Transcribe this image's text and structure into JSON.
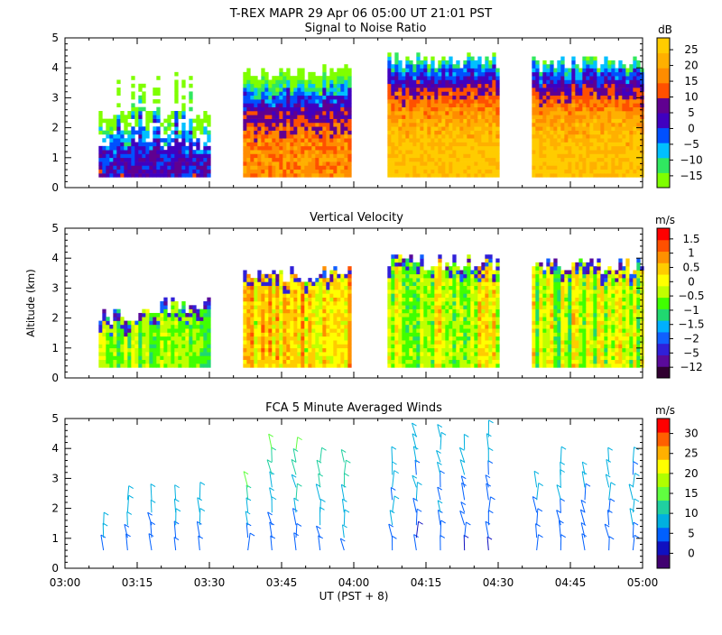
{
  "header": {
    "line1": "T-REX   MAPR 29 Apr 06   05:00 UT   21:01   PST"
  },
  "colors": {
    "snr": [
      "#7fff00",
      "#30e860",
      "#00c0ff",
      "#0050ff",
      "#4000c0",
      "#600090",
      "#ff5000",
      "#ff8c00",
      "#ffb000",
      "#ffcc00"
    ],
    "vel": [
      "#300030",
      "#5a0a9a",
      "#3020d8",
      "#1060ff",
      "#00b0ff",
      "#20d870",
      "#40ff00",
      "#c0ff00",
      "#ffff00",
      "#ffcc00",
      "#ff9000",
      "#ff5000",
      "#ff0000"
    ],
    "wind": [
      "#400070",
      "#1010c0",
      "#0060ff",
      "#00b0e0",
      "#20d0a0",
      "#60ff40",
      "#b0ff00",
      "#ffff00",
      "#ffb000",
      "#ff6000",
      "#ff0000"
    ],
    "background": "#ffffff",
    "axes": "#000000"
  },
  "chart_data": [
    {
      "type": "heatmap",
      "title": "Signal to Noise Ratio",
      "ylabel": "",
      "ylim": [
        0,
        5
      ],
      "y_ticks": [
        "0",
        "1",
        "2",
        "3",
        "4",
        "5"
      ],
      "x_range": [
        "03:00",
        "05:00"
      ],
      "colorbar": {
        "unit": "dB",
        "tick_labels": [
          "25",
          "20",
          "15",
          "10",
          "5",
          "0",
          "−5",
          "−10",
          "−15"
        ]
      },
      "data_segments_utc": [
        [
          "03:07",
          "03:30"
        ],
        [
          "03:37",
          "03:59"
        ],
        [
          "04:07",
          "04:30"
        ],
        [
          "04:37",
          "05:00"
        ]
      ]
    },
    {
      "type": "heatmap",
      "title": "Vertical Velocity",
      "ylabel": "Altitude (km)",
      "ylim": [
        0,
        5
      ],
      "y_ticks": [
        "0",
        "1",
        "2",
        "3",
        "4",
        "5"
      ],
      "x_range": [
        "03:00",
        "05:00"
      ],
      "colorbar": {
        "unit": "m/s",
        "tick_labels": [
          "1.5",
          "1",
          "0.5",
          "0",
          "−0.5",
          "−1",
          "−1.5",
          "−2",
          "−5",
          "−12"
        ]
      },
      "data_segments_utc": [
        [
          "03:07",
          "03:30"
        ],
        [
          "03:37",
          "03:59"
        ],
        [
          "04:07",
          "04:30"
        ],
        [
          "04:37",
          "05:00"
        ]
      ]
    },
    {
      "type": "scatter",
      "title": "FCA 5 Minute Averaged Winds",
      "ylabel": "",
      "ylim": [
        0,
        5
      ],
      "y_ticks": [
        "0",
        "1",
        "2",
        "3",
        "4",
        "5"
      ],
      "xlabel": "UT   (PST + 8)",
      "x_ticks": [
        "03:00",
        "03:15",
        "03:30",
        "03:45",
        "04:00",
        "04:15",
        "04:30",
        "04:45",
        "05:00"
      ],
      "colorbar": {
        "unit": "m/s",
        "tick_labels": [
          "30",
          "25",
          "20",
          "15",
          "10",
          "5",
          "0"
        ]
      },
      "profile_times_utc": [
        "03:08",
        "03:13",
        "03:18",
        "03:23",
        "03:28",
        "03:38",
        "03:43",
        "03:48",
        "03:53",
        "03:58",
        "04:08",
        "04:13",
        "04:18",
        "04:23",
        "04:28",
        "04:38",
        "04:43",
        "04:48",
        "04:53",
        "04:58"
      ]
    }
  ]
}
